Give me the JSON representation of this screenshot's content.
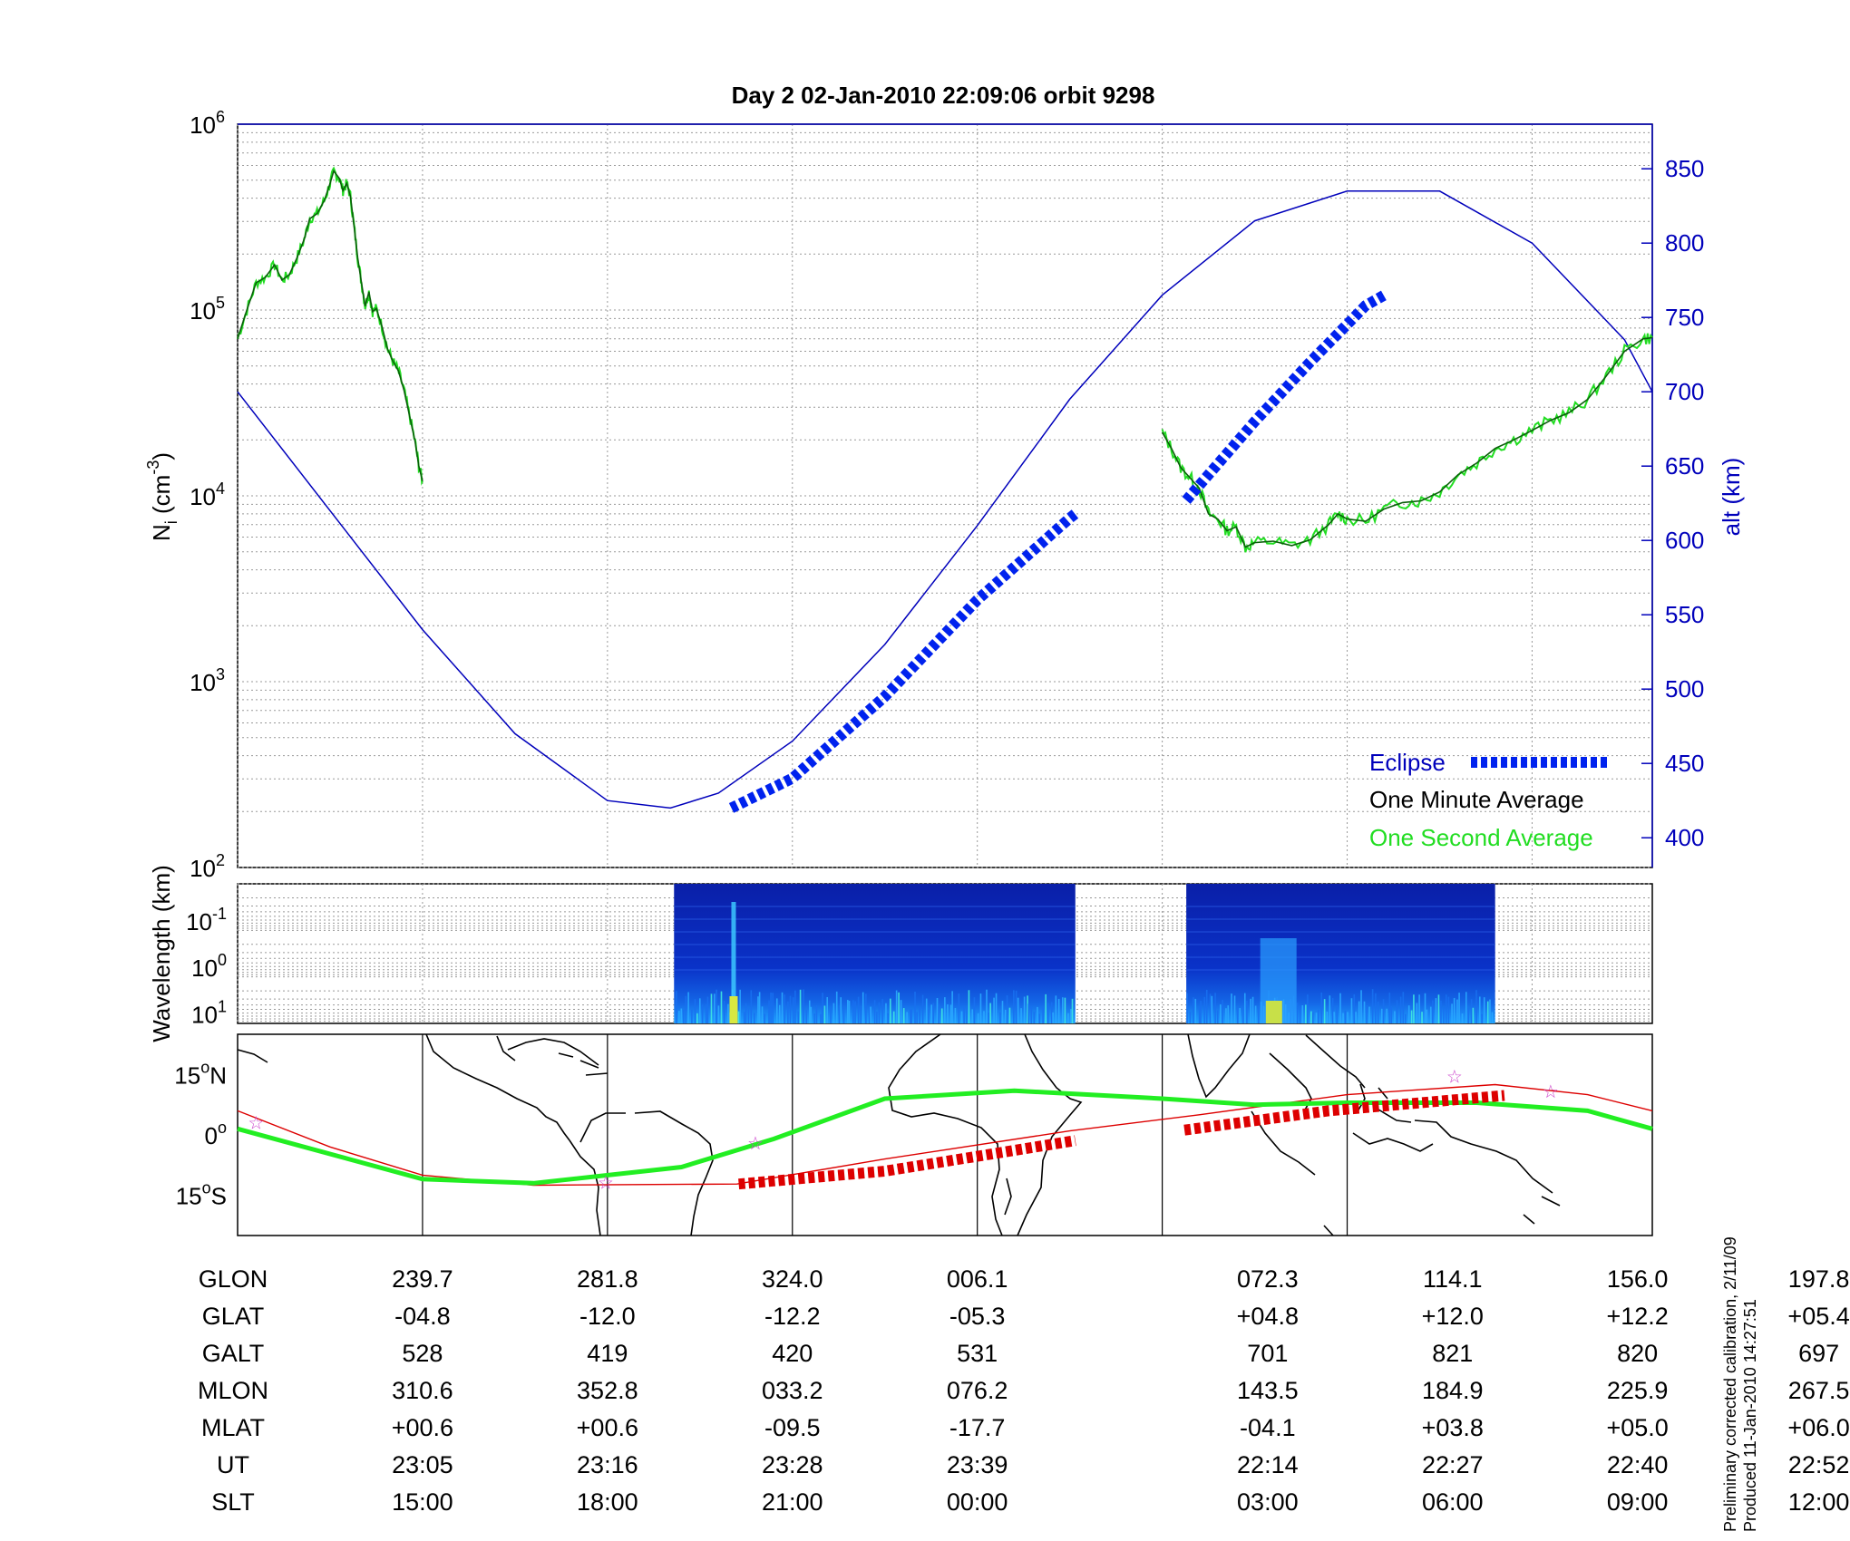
{
  "title": "Day 2  02-Jan-2010 22:09:06   orbit 9298",
  "colors": {
    "density_minute": "#0a5e0a",
    "density_second": "#22dd22",
    "altitude": "#0000bb",
    "eclipse": "#0022ee",
    "track": "#22ee22",
    "orbit_red": "#dd0000",
    "star": "#cc44cc"
  },
  "chart_data": [
    {
      "type": "line",
      "panel": "ion density and altitude",
      "ylabel_left": "N",
      "ylabel_left_sub": "i",
      "ylabel_left_unit": "(cm",
      "ylabel_left_exp": "-3",
      "ylabel_left_close": ")",
      "ylabel_right": "alt (km)",
      "y_left_scale": "log",
      "ylim_left": [
        100,
        1000000
      ],
      "y_left_ticks": [
        {
          "base": "10",
          "exp": "2"
        },
        {
          "base": "10",
          "exp": "3"
        },
        {
          "base": "10",
          "exp": "4"
        },
        {
          "base": "10",
          "exp": "5"
        },
        {
          "base": "10",
          "exp": "6"
        }
      ],
      "ylim_right": [
        380,
        880
      ],
      "y_right_ticks": [
        "400",
        "450",
        "500",
        "550",
        "600",
        "650",
        "700",
        "750",
        "800",
        "850"
      ],
      "grid": true,
      "legend_position": "bottom-right",
      "legend": {
        "eclipse": "Eclipse",
        "minute": "One Minute Average",
        "second": "One Second Average"
      },
      "density_segment_1": [
        [
          0,
          70000
        ],
        [
          0.05,
          100000
        ],
        [
          0.1,
          140000
        ],
        [
          0.15,
          150000
        ],
        [
          0.2,
          175000
        ],
        [
          0.24,
          145000
        ],
        [
          0.28,
          155000
        ],
        [
          0.32,
          190000
        ],
        [
          0.36,
          240000
        ],
        [
          0.39,
          310000
        ],
        [
          0.43,
          330000
        ],
        [
          0.47,
          390000
        ],
        [
          0.5,
          480000
        ],
        [
          0.52,
          560000
        ],
        [
          0.55,
          510000
        ],
        [
          0.57,
          440000
        ],
        [
          0.59,
          480000
        ],
        [
          0.61,
          410000
        ],
        [
          0.63,
          280000
        ],
        [
          0.65,
          190000
        ],
        [
          0.67,
          140000
        ],
        [
          0.69,
          105000
        ],
        [
          0.71,
          125000
        ],
        [
          0.73,
          98000
        ],
        [
          0.75,
          102000
        ],
        [
          0.78,
          82000
        ],
        [
          0.81,
          62000
        ],
        [
          0.84,
          53000
        ],
        [
          0.87,
          47000
        ],
        [
          0.9,
          37000
        ],
        [
          0.93,
          27000
        ],
        [
          0.96,
          19500
        ],
        [
          0.98,
          14500
        ],
        [
          1.0,
          12000
        ]
      ],
      "density_segment_2": [
        [
          5.0,
          22000
        ],
        [
          5.05,
          18000
        ],
        [
          5.1,
          14200
        ],
        [
          5.15,
          12500
        ],
        [
          5.2,
          11000
        ],
        [
          5.25,
          8000
        ],
        [
          5.3,
          7500
        ],
        [
          5.35,
          6500
        ],
        [
          5.4,
          6800
        ],
        [
          5.45,
          5300
        ],
        [
          5.5,
          5600
        ],
        [
          5.6,
          5700
        ],
        [
          5.7,
          5400
        ],
        [
          5.8,
          5800
        ],
        [
          5.9,
          7000
        ],
        [
          5.95,
          8000
        ],
        [
          6.0,
          7500
        ],
        [
          6.1,
          7300
        ],
        [
          6.2,
          8500
        ],
        [
          6.3,
          9200
        ],
        [
          6.4,
          9400
        ],
        [
          6.5,
          10500
        ],
        [
          6.6,
          13000
        ],
        [
          6.7,
          15000
        ],
        [
          6.8,
          18000
        ],
        [
          6.9,
          20000
        ],
        [
          7.0,
          22500
        ],
        [
          7.1,
          25500
        ],
        [
          7.2,
          28000
        ],
        [
          7.3,
          33000
        ],
        [
          7.4,
          44000
        ],
        [
          7.5,
          60000
        ],
        [
          7.6,
          70000
        ],
        [
          7.65,
          71000
        ]
      ],
      "altitude": [
        [
          0,
          700
        ],
        [
          0.5,
          620
        ],
        [
          1.0,
          540
        ],
        [
          1.5,
          470
        ],
        [
          2.0,
          425
        ],
        [
          2.34,
          420
        ],
        [
          2.6,
          430
        ],
        [
          3.0,
          465
        ],
        [
          3.5,
          530
        ],
        [
          4.0,
          610
        ],
        [
          4.5,
          695
        ],
        [
          5.0,
          765
        ],
        [
          5.5,
          815
        ],
        [
          6.0,
          835
        ],
        [
          6.5,
          835
        ],
        [
          7.0,
          800
        ],
        [
          7.5,
          735
        ],
        [
          7.65,
          700
        ]
      ],
      "eclipse_segments": [
        [
          [
            2.67,
            420
          ],
          [
            3.0,
            440
          ],
          [
            3.5,
            495
          ],
          [
            4.0,
            560
          ],
          [
            4.5,
            615
          ],
          [
            4.53,
            618
          ]
        ],
        [
          [
            5.13,
            627
          ],
          [
            5.5,
            680
          ],
          [
            5.8,
            720
          ],
          [
            6.1,
            758
          ],
          [
            6.2,
            765
          ]
        ]
      ]
    },
    {
      "type": "heatmap",
      "panel": "wavelength spectrogram",
      "ylabel": "Wavelength (km)",
      "y_ticks": [
        {
          "base": "10",
          "exp": "-1"
        },
        {
          "base": "10",
          "exp": "0"
        },
        {
          "base": "10",
          "exp": "1"
        }
      ],
      "data_blocks": [
        [
          2.36,
          4.53
        ],
        [
          5.13,
          6.8
        ]
      ]
    },
    {
      "type": "line",
      "panel": "ground track map",
      "y_ticks": [
        {
          "deg": "15",
          "hem": "N"
        },
        {
          "deg": "0",
          "hem": ""
        },
        {
          "deg": "15",
          "hem": "S"
        }
      ],
      "ylim": [
        -25,
        25
      ],
      "track_green": [
        [
          0,
          1.5
        ],
        [
          1.0,
          -11
        ],
        [
          1.6,
          -12
        ],
        [
          2.4,
          -8
        ],
        [
          2.9,
          -1
        ],
        [
          3.5,
          9
        ],
        [
          4.2,
          11
        ],
        [
          5.0,
          9
        ],
        [
          5.5,
          7.5
        ],
        [
          6.0,
          8
        ],
        [
          6.7,
          8
        ],
        [
          7.3,
          6
        ],
        [
          7.65,
          1.5
        ]
      ],
      "orbit_red": [
        [
          0,
          6
        ],
        [
          0.5,
          -3
        ],
        [
          1.0,
          -10
        ],
        [
          1.6,
          -12.5
        ],
        [
          2.7,
          -12.2
        ],
        [
          3.5,
          -6
        ],
        [
          4.5,
          1
        ],
        [
          5.2,
          5
        ],
        [
          6.0,
          10
        ],
        [
          6.8,
          12.5
        ],
        [
          7.3,
          10
        ],
        [
          7.65,
          6
        ]
      ],
      "eclipse_red": [
        [
          [
            2.71,
            -12.2
          ],
          [
            3.5,
            -9
          ],
          [
            4.53,
            -1.4
          ]
        ],
        [
          [
            5.12,
            1.2
          ],
          [
            5.9,
            6
          ],
          [
            6.85,
            9.8
          ]
        ]
      ],
      "stars": [
        [
          0.1,
          3
        ],
        [
          1.99,
          -11.8
        ],
        [
          2.8,
          -2
        ],
        [
          6.58,
          14.5
        ],
        [
          7.1,
          10.8
        ]
      ]
    }
  ],
  "table": {
    "row_labels": [
      "GLON",
      "GLAT",
      "GALT",
      "MLON",
      "MLAT",
      "UT",
      "SLT"
    ],
    "columns": [
      [
        "239.7",
        "-04.8",
        "528",
        "310.6",
        "+00.6",
        "23:05",
        "15:00"
      ],
      [
        "281.8",
        "-12.0",
        "419",
        "352.8",
        "+00.6",
        "23:16",
        "18:00"
      ],
      [
        "324.0",
        "-12.2",
        "420",
        "033.2",
        "-09.5",
        "23:28",
        "21:00"
      ],
      [
        "006.1",
        "-05.3",
        "531",
        "076.2",
        "-17.7",
        "23:39",
        "00:00"
      ],
      [
        "072.3",
        "+04.8",
        "701",
        "143.5",
        "-04.1",
        "22:14",
        "03:00"
      ],
      [
        "114.1",
        "+12.0",
        "821",
        "184.9",
        "+03.8",
        "22:27",
        "06:00"
      ],
      [
        "156.0",
        "+12.2",
        "820",
        "225.9",
        "+05.0",
        "22:40",
        "09:00"
      ],
      [
        "197.8",
        "+05.4",
        "697",
        "267.5",
        "+06.0",
        "22:52",
        "12:00"
      ]
    ]
  },
  "footnote_1": "Preliminary corrected calibration, 2/11/09",
  "footnote_2": "Produced 11-Jan-2010 14:27:51"
}
